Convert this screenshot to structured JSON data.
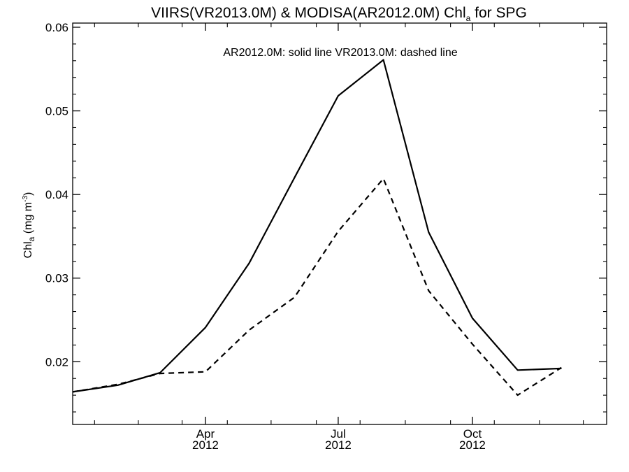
{
  "chart_data": {
    "type": "line",
    "title": {
      "main": "VIIRS(VR2013.0M) & MODISA(AR2012.0M)  Chl",
      "subscript": "a",
      "suffix": " for SPG"
    },
    "annotation": "AR2012.0M: solid line   VR2013.0M: dashed line",
    "ylabel": {
      "main": "Chl",
      "subscript": "a",
      "unit_open": " (mg m",
      "unit_superscript": "-3",
      "unit_close": ")"
    },
    "ylim": [
      0.0125,
      0.0605
    ],
    "y_ticks": [
      {
        "value": 0.02,
        "label": "0.02"
      },
      {
        "value": 0.03,
        "label": "0.03"
      },
      {
        "value": 0.04,
        "label": "0.04"
      },
      {
        "value": 0.05,
        "label": "0.05"
      },
      {
        "value": 0.06,
        "label": "0.06"
      }
    ],
    "xlim": [
      "2012-01-01",
      "2013-01-01"
    ],
    "x_ticks": [
      {
        "value": "2012-04-01",
        "month": "Apr",
        "year": "2012"
      },
      {
        "value": "2012-07-01",
        "month": "Jul",
        "year": "2012"
      },
      {
        "value": "2012-10-01",
        "month": "Oct",
        "year": "2012"
      }
    ],
    "x_minor_ticks": [
      "2012-01-16",
      "2012-02-15",
      "2012-03-16",
      "2012-04-16",
      "2012-05-16",
      "2012-06-16",
      "2012-07-16",
      "2012-08-16",
      "2012-09-16",
      "2012-10-16",
      "2012-11-16",
      "2012-12-16"
    ],
    "series": [
      {
        "style": "solid",
        "points": [
          {
            "x": "2012-01-01",
            "y": 0.0164
          },
          {
            "x": "2012-02-01",
            "y": 0.0172
          },
          {
            "x": "2012-03-01",
            "y": 0.0187
          },
          {
            "x": "2012-04-01",
            "y": 0.0241
          },
          {
            "x": "2012-05-01",
            "y": 0.0318
          },
          {
            "x": "2012-06-01",
            "y": 0.042
          },
          {
            "x": "2012-07-01",
            "y": 0.0518
          },
          {
            "x": "2012-08-01",
            "y": 0.0561
          },
          {
            "x": "2012-09-01",
            "y": 0.0355
          },
          {
            "x": "2012-10-01",
            "y": 0.0252
          },
          {
            "x": "2012-11-01",
            "y": 0.019
          },
          {
            "x": "2012-12-01",
            "y": 0.0192
          }
        ]
      },
      {
        "style": "dashed",
        "points": [
          {
            "x": "2012-01-01",
            "y": 0.0164
          },
          {
            "x": "2012-02-01",
            "y": 0.0173
          },
          {
            "x": "2012-03-01",
            "y": 0.0186
          },
          {
            "x": "2012-04-01",
            "y": 0.0188
          },
          {
            "x": "2012-05-01",
            "y": 0.0238
          },
          {
            "x": "2012-06-01",
            "y": 0.0277
          },
          {
            "x": "2012-07-01",
            "y": 0.0356
          },
          {
            "x": "2012-08-01",
            "y": 0.0419
          },
          {
            "x": "2012-09-01",
            "y": 0.0285
          },
          {
            "x": "2012-10-01",
            "y": 0.0221
          },
          {
            "x": "2012-11-01",
            "y": 0.016
          },
          {
            "x": "2012-12-01",
            "y": 0.0193
          }
        ]
      }
    ],
    "colors": {
      "line": "#000000",
      "axis": "#000000",
      "background": "#ffffff"
    },
    "grid": false,
    "legend": "none"
  }
}
